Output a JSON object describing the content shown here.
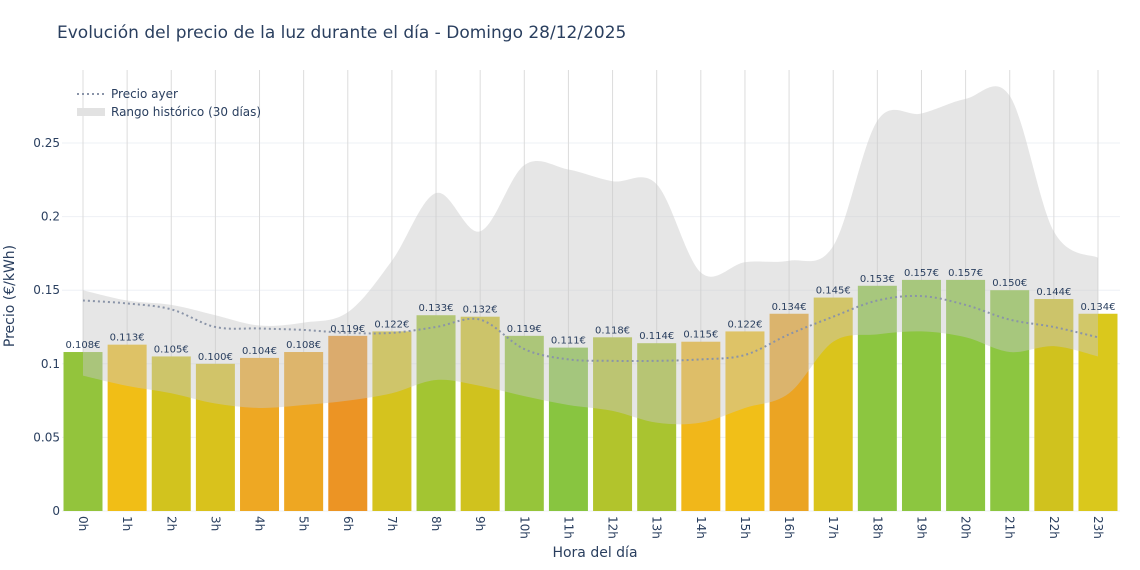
{
  "chart_data": {
    "type": "bar",
    "title": "Evolución del precio de la luz durante el día - Domingo 28/12/2025",
    "xlabel": "Hora del día",
    "ylabel": "Precio (€/kWh)",
    "ylim": [
      0,
      0.29
    ],
    "yticks": [
      0,
      0.05,
      0.1,
      0.15,
      0.2,
      0.25
    ],
    "ytick_labels": [
      "0",
      "0.05",
      "0.1",
      "0.15",
      "0.2",
      "0.25"
    ],
    "grid": true,
    "legend_position": "top-left",
    "categories": [
      "0h",
      "1h",
      "2h",
      "3h",
      "4h",
      "5h",
      "6h",
      "7h",
      "8h",
      "9h",
      "10h",
      "11h",
      "12h",
      "13h",
      "14h",
      "15h",
      "16h",
      "17h",
      "18h",
      "19h",
      "20h",
      "21h",
      "22h",
      "23h"
    ],
    "values": [
      0.108,
      0.113,
      0.105,
      0.1,
      0.104,
      0.108,
      0.119,
      0.122,
      0.133,
      0.132,
      0.119,
      0.111,
      0.118,
      0.114,
      0.115,
      0.122,
      0.134,
      0.145,
      0.153,
      0.157,
      0.157,
      0.15,
      0.144,
      0.134
    ],
    "data_labels": [
      "0.108€",
      "0.113€",
      "0.105€",
      "0.100€",
      "0.104€",
      "0.108€",
      "0.119€",
      "0.122€",
      "0.133€",
      "0.132€",
      "0.119€",
      "0.111€",
      "0.118€",
      "0.114€",
      "0.115€",
      "0.122€",
      "0.134€",
      "0.145€",
      "0.153€",
      "0.157€",
      "0.157€",
      "0.150€",
      "0.144€",
      "0.134€"
    ],
    "bar_colors": [
      "#93c43c",
      "#f1be16",
      "#d2c31e",
      "#d9c21c",
      "#eea823",
      "#eea722",
      "#ec9424",
      "#d5c31e",
      "#a3c532",
      "#d0c21e",
      "#96c53a",
      "#88c540",
      "#b2c42c",
      "#a9c430",
      "#f1b71a",
      "#f1bf18",
      "#eba423",
      "#dac41c",
      "#8cc640",
      "#8cc640",
      "#8cc640",
      "#8cc640",
      "#d0c21e",
      "#dac81c"
    ],
    "series": [
      {
        "name": "Precio ayer",
        "type": "line",
        "style": "dotted",
        "color": "#8a94a8",
        "values": [
          0.143,
          0.141,
          0.137,
          0.125,
          0.124,
          0.123,
          0.121,
          0.121,
          0.125,
          0.13,
          0.11,
          0.103,
          0.102,
          0.102,
          0.103,
          0.106,
          0.12,
          0.132,
          0.143,
          0.146,
          0.14,
          0.13,
          0.125,
          0.118
        ]
      },
      {
        "name": "Rango histórico (30 días)",
        "type": "area-range",
        "color": "#d3d3d3",
        "upper": [
          0.15,
          0.143,
          0.14,
          0.133,
          0.126,
          0.128,
          0.135,
          0.17,
          0.216,
          0.19,
          0.235,
          0.232,
          0.224,
          0.222,
          0.162,
          0.169,
          0.17,
          0.18,
          0.265,
          0.27,
          0.28,
          0.282,
          0.19,
          0.172
        ],
        "lower": [
          0.092,
          0.085,
          0.08,
          0.073,
          0.07,
          0.072,
          0.075,
          0.08,
          0.089,
          0.085,
          0.078,
          0.072,
          0.068,
          0.06,
          0.06,
          0.07,
          0.08,
          0.115,
          0.12,
          0.122,
          0.118,
          0.108,
          0.112,
          0.105
        ]
      }
    ]
  }
}
